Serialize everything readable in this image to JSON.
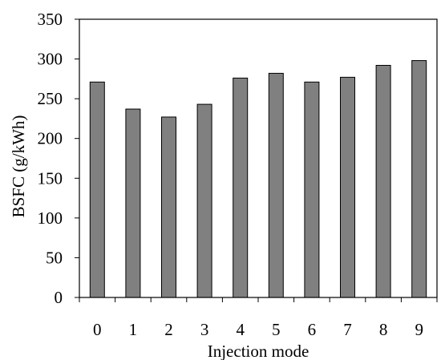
{
  "chart_data": {
    "type": "bar",
    "categories": [
      "0",
      "1",
      "2",
      "3",
      "4",
      "5",
      "6",
      "7",
      "8",
      "9"
    ],
    "values": [
      271,
      237,
      227,
      243,
      276,
      282,
      271,
      277,
      292,
      298
    ],
    "xlabel": "Injection mode",
    "ylabel": "BSFC (g/kWh)",
    "ylim": [
      0,
      350
    ],
    "yticks": [
      "0",
      "50",
      "100",
      "150",
      "200",
      "250",
      "300",
      "350"
    ],
    "grid": false,
    "legend": "none",
    "colors": {
      "bar_fill": "#808080",
      "bar_stroke": "#000000",
      "axis": "#000000"
    }
  }
}
